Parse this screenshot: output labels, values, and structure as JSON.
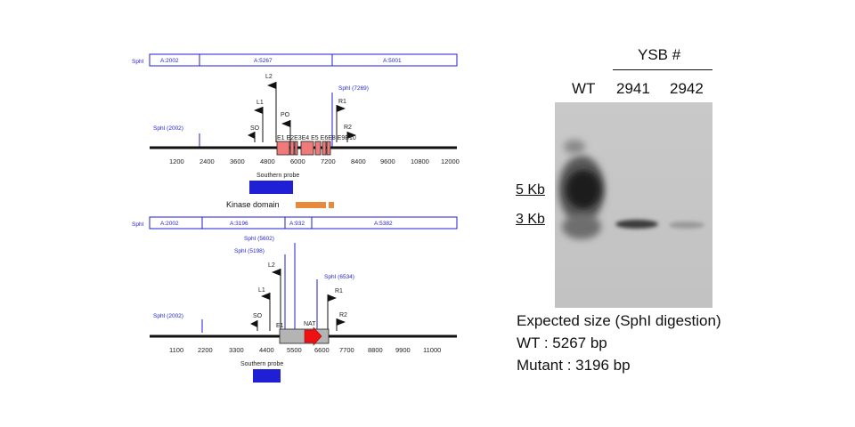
{
  "wt_map": {
    "site_prefix": "SphI",
    "segments": [
      "A:2002",
      "A:5267",
      "A:5001"
    ],
    "site_left": "SphI (2002)",
    "site_right": "SphI (7269)",
    "axis_ticks": [
      "1200",
      "2400",
      "3600",
      "4800",
      "6000",
      "7200",
      "8400",
      "9600",
      "10800",
      "12000"
    ],
    "primers": [
      "L2",
      "L1",
      "PO",
      "SO",
      "R1",
      "R2"
    ],
    "exons": [
      "E1",
      "E2",
      "E3",
      "E4",
      "E5",
      "E6",
      "E7",
      "E8",
      "E9",
      "E10"
    ],
    "probe_label": "Southern probe",
    "kinase_label": "Kinase domain"
  },
  "mut_map": {
    "site_prefix": "SphI",
    "segments": [
      "A:2002",
      "A:3196",
      "A:932",
      "A:5382"
    ],
    "site_left": "SphI (2002)",
    "site_5198": "SphI (5198)",
    "site_5602": "SphI (5602)",
    "site_6534": "SphI (6534)",
    "axis_ticks": [
      "1100",
      "2200",
      "3300",
      "4400",
      "5500",
      "6600",
      "7700",
      "8800",
      "9900",
      "11000"
    ],
    "primers": [
      "L2",
      "L1",
      "SO",
      "R1",
      "R2"
    ],
    "exon_label": "E1",
    "marker_label": "NAT",
    "probe_label": "Southern probe"
  },
  "blot": {
    "group_label": "YSB #",
    "lanes": [
      "WT",
      "2941",
      "2942"
    ],
    "markers": [
      "5 Kb",
      "3 Kb"
    ],
    "expected_title": "Expected size (SphI digestion)",
    "expected_wt": "WT : 5267 bp",
    "expected_mutant": "Mutant : 3196 bp"
  },
  "colors": {
    "map_blue": "#1f1fd6",
    "exon_fill": "#f07a7a",
    "probe_fill": "#1f1fd6",
    "kinase_fill": "#e88a3c",
    "nat_arrow": "#ee1111",
    "cassette_fill": "#b4b4b4",
    "gel_background": "#c7c7c7"
  }
}
